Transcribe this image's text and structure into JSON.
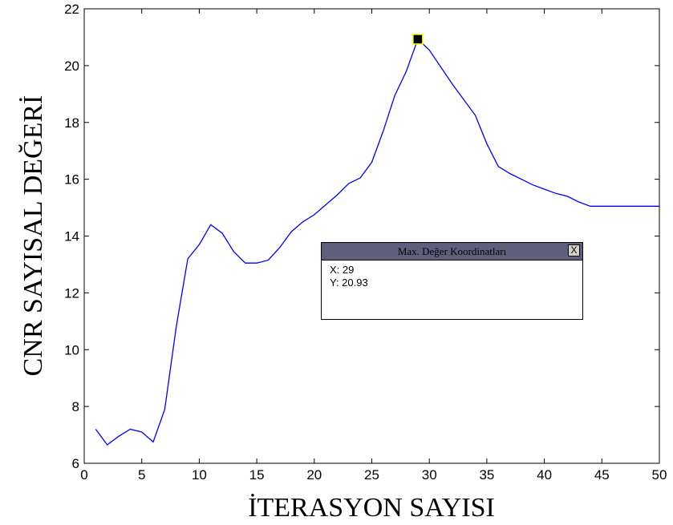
{
  "chart_data": {
    "type": "line",
    "xlabel": "İTERASYON SAYISI",
    "ylabel": "CNR SAYISAL DEĞERİ",
    "xlim": [
      0,
      50
    ],
    "ylim": [
      6,
      22
    ],
    "xticks": [
      0,
      5,
      10,
      15,
      20,
      25,
      30,
      35,
      40,
      45,
      50
    ],
    "yticks": [
      6,
      8,
      10,
      12,
      14,
      16,
      18,
      20,
      22
    ],
    "grid": false,
    "series": [
      {
        "color": "#0000ff",
        "x": [
          1,
          2,
          3,
          4,
          5,
          6,
          7,
          8,
          9,
          10,
          11,
          12,
          13,
          14,
          15,
          16,
          17,
          18,
          19,
          20,
          21,
          22,
          23,
          24,
          25,
          26,
          27,
          28,
          29,
          30,
          31,
          32,
          33,
          34,
          35,
          36,
          37,
          38,
          39,
          40,
          41,
          42,
          43,
          44,
          45,
          46,
          47,
          48,
          49,
          50
        ],
        "y": [
          7.2,
          6.65,
          6.95,
          7.2,
          7.1,
          6.75,
          7.9,
          10.8,
          13.2,
          13.7,
          14.4,
          14.1,
          13.45,
          13.05,
          13.05,
          13.15,
          13.6,
          14.15,
          14.5,
          14.75,
          15.1,
          15.45,
          15.85,
          16.05,
          16.6,
          17.7,
          18.95,
          19.8,
          20.93,
          20.55,
          19.95,
          19.35,
          18.8,
          18.25,
          17.25,
          16.45,
          16.2,
          16.0,
          15.8,
          15.65,
          15.5,
          15.4,
          15.2,
          15.05,
          15.05,
          15.05,
          15.05,
          15.05,
          15.05,
          15.05
        ]
      }
    ],
    "marker": {
      "x": 29,
      "y": 20.93
    }
  },
  "datatip": {
    "title": "Max. Değer Koordinatları",
    "close_label": "X",
    "x_text": "X: 29",
    "y_text": "Y: 20.93"
  }
}
